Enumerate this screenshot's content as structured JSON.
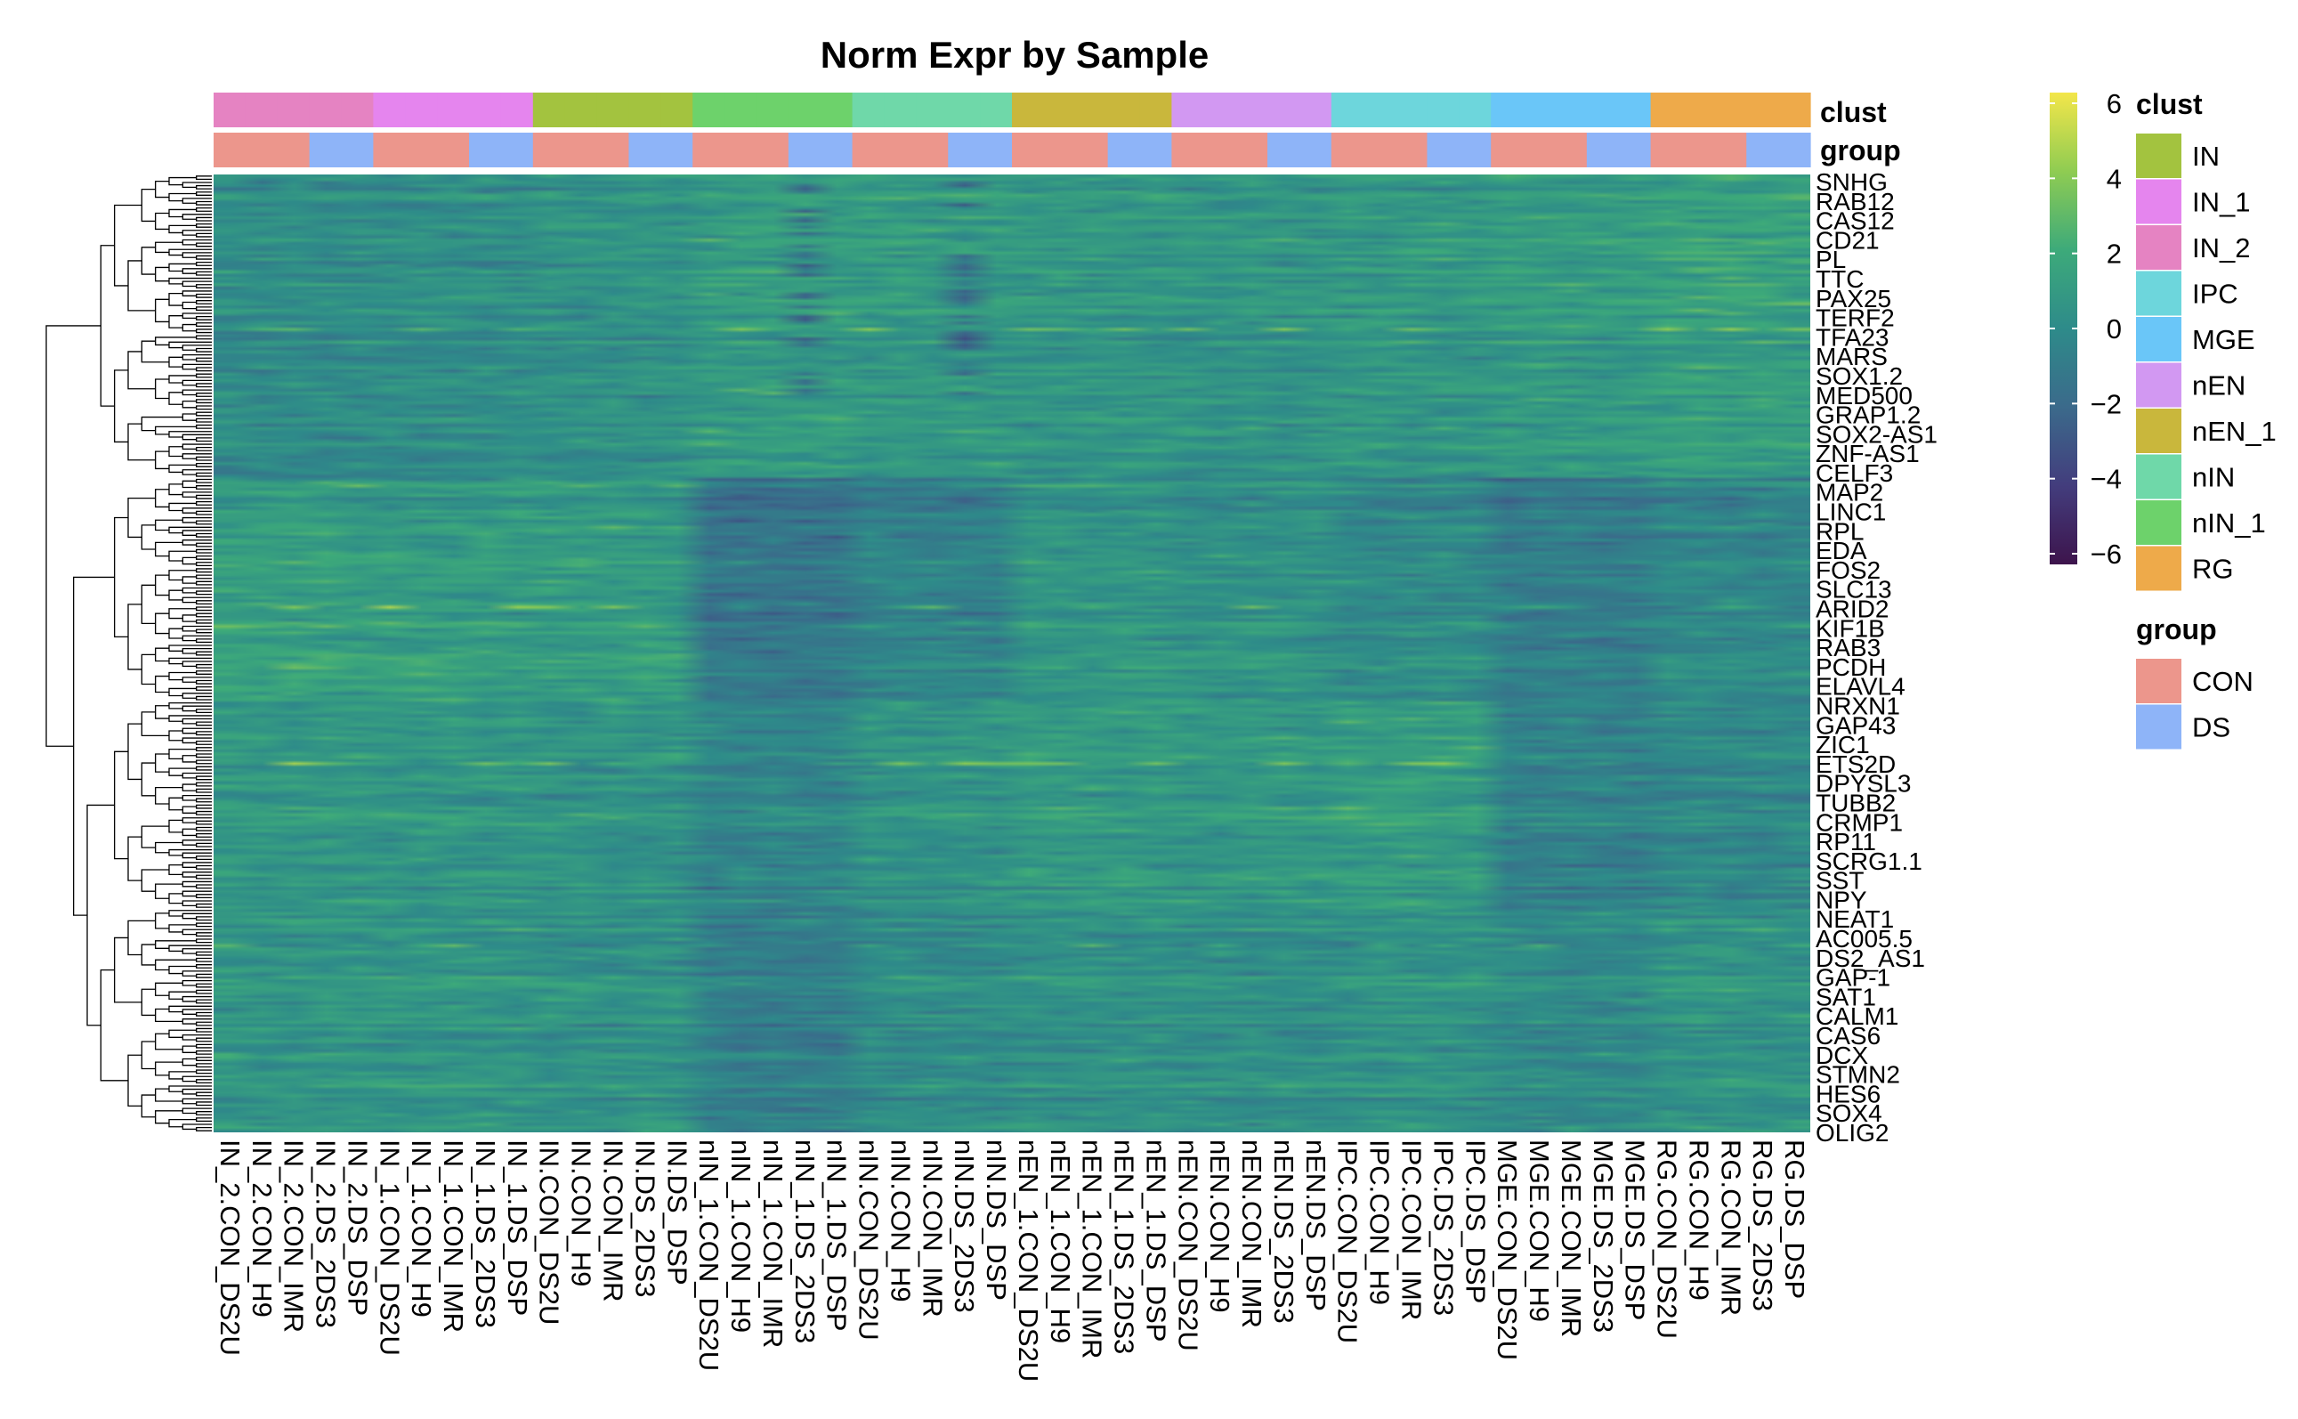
{
  "chart_data": {
    "type": "heatmap",
    "title": "Norm Expr by Sample",
    "columns": [
      "IN_2.CON_DS2U",
      "IN_2.CON_H9",
      "IN_2.CON_IMR",
      "IN_2.DS_2DS3",
      "IN_2.DS_DSP",
      "IN_1.CON_DS2U",
      "IN_1.CON_H9",
      "IN_1.CON_IMR",
      "IN_1.DS_2DS3",
      "IN_1.DS_DSP",
      "IN.CON_DS2U",
      "IN.CON_H9",
      "IN.CON_IMR",
      "IN.DS_2DS3",
      "IN.DS_DSP",
      "nIN_1.CON_DS2U",
      "nIN_1.CON_H9",
      "nIN_1.CON_IMR",
      "nIN_1.DS_2DS3",
      "nIN_1.DS_DSP",
      "nIN.CON_DS2U",
      "nIN.CON_H9",
      "nIN.CON_IMR",
      "nIN.DS_2DS3",
      "nIN.DS_DSP",
      "nEN_1.CON_DS2U",
      "nEN_1.CON_H9",
      "nEN_1.CON_IMR",
      "nEN_1.DS_2DS3",
      "nEN_1.DS_DSP",
      "nEN.CON_DS2U",
      "nEN.CON_H9",
      "nEN.CON_IMR",
      "nEN.DS_2DS3",
      "nEN.DS_DSP",
      "IPC.CON_DS2U",
      "IPC.CON_H9",
      "IPC.CON_IMR",
      "IPC.DS_2DS3",
      "IPC.DS_DSP",
      "MGE.CON_DS2U",
      "MGE.CON_H9",
      "MGE.CON_IMR",
      "MGE.DS_2DS3",
      "MGE.DS_DSP",
      "RG.CON_DS2U",
      "RG.CON_H9",
      "RG.CON_IMR",
      "RG.DS_2DS3",
      "RG.DS_DSP"
    ],
    "column_clust": [
      "IN_2",
      "IN_2",
      "IN_2",
      "IN_2",
      "IN_2",
      "IN_1",
      "IN_1",
      "IN_1",
      "IN_1",
      "IN_1",
      "IN",
      "IN",
      "IN",
      "IN",
      "IN",
      "nIN_1",
      "nIN_1",
      "nIN_1",
      "nIN_1",
      "nIN_1",
      "nIN",
      "nIN",
      "nIN",
      "nIN",
      "nIN",
      "nEN_1",
      "nEN_1",
      "nEN_1",
      "nEN_1",
      "nEN_1",
      "nEN",
      "nEN",
      "nEN",
      "nEN",
      "nEN",
      "IPC",
      "IPC",
      "IPC",
      "IPC",
      "IPC",
      "MGE",
      "MGE",
      "MGE",
      "MGE",
      "MGE",
      "RG",
      "RG",
      "RG",
      "RG",
      "RG"
    ],
    "column_group": [
      "CON",
      "CON",
      "CON",
      "DS",
      "DS",
      "CON",
      "CON",
      "CON",
      "DS",
      "DS",
      "CON",
      "CON",
      "CON",
      "DS",
      "DS",
      "CON",
      "CON",
      "CON",
      "DS",
      "DS",
      "CON",
      "CON",
      "CON",
      "DS",
      "DS",
      "CON",
      "CON",
      "CON",
      "DS",
      "DS",
      "CON",
      "CON",
      "CON",
      "DS",
      "DS",
      "CON",
      "CON",
      "CON",
      "DS",
      "DS",
      "CON",
      "CON",
      "CON",
      "DS",
      "DS",
      "CON",
      "CON",
      "CON",
      "DS",
      "DS"
    ],
    "annotation_labels": {
      "clust": "clust",
      "group": "group"
    },
    "row_labels_visible": [
      "SNHG",
      "RAB12",
      "CAS12",
      "CD21",
      "PL",
      "TTC",
      "PAX25",
      "TERF2",
      "TFA23",
      "MARS",
      "SOX1.2",
      "MED500",
      "GRAP1.2",
      "SOX2-AS1",
      "ZNF-AS1",
      "CELF3",
      "MAP2",
      "LINC1",
      "RPL",
      "EDA",
      "FOS2",
      "SLC13",
      "ARID2",
      "KIF1B",
      "RAB3",
      "PCDH",
      "ELAVL4",
      "NRXN1",
      "GAP43",
      "ZIC1",
      "ETS2D",
      "DPYSL3",
      "TUBB2",
      "CRMP1",
      "RP11",
      "SCRG1.1",
      "SST",
      "NPY",
      "NEAT1",
      "AC005.5",
      "DS2_AS1",
      "GAP-1",
      "SAT1",
      "CALM1",
      "CAS6",
      "DCX",
      "STMN2",
      "HES6",
      "SOX4",
      "OLIG2"
    ],
    "colorbar": {
      "min": -6,
      "max": 6,
      "ticks": [
        6,
        4,
        2,
        0,
        -2,
        -4,
        -6
      ]
    },
    "colorscale": [
      "#3d144c",
      "#433d7d",
      "#3b6a8b",
      "#2e8b8a",
      "#3daa7a",
      "#8fcc52",
      "#f3e64a"
    ],
    "legends": {
      "clust": {
        "title": "clust",
        "items": [
          {
            "label": "IN",
            "color": "#a3c33f"
          },
          {
            "label": "IN_1",
            "color": "#e585ee"
          },
          {
            "label": "IN_2",
            "color": "#e583c2"
          },
          {
            "label": "IPC",
            "color": "#6dd6dc"
          },
          {
            "label": "MGE",
            "color": "#6ac6f8"
          },
          {
            "label": "nEN",
            "color": "#d298f2"
          },
          {
            "label": "nEN_1",
            "color": "#c9b73c"
          },
          {
            "label": "nIN",
            "color": "#6fd8a9"
          },
          {
            "label": "nIN_1",
            "color": "#6dd26b"
          },
          {
            "label": "RG",
            "color": "#eeaa4a"
          }
        ]
      },
      "group": {
        "title": "group",
        "items": [
          {
            "label": "CON",
            "color": "#ec968c"
          },
          {
            "label": "DS",
            "color": "#8eb4f8"
          }
        ]
      }
    }
  }
}
